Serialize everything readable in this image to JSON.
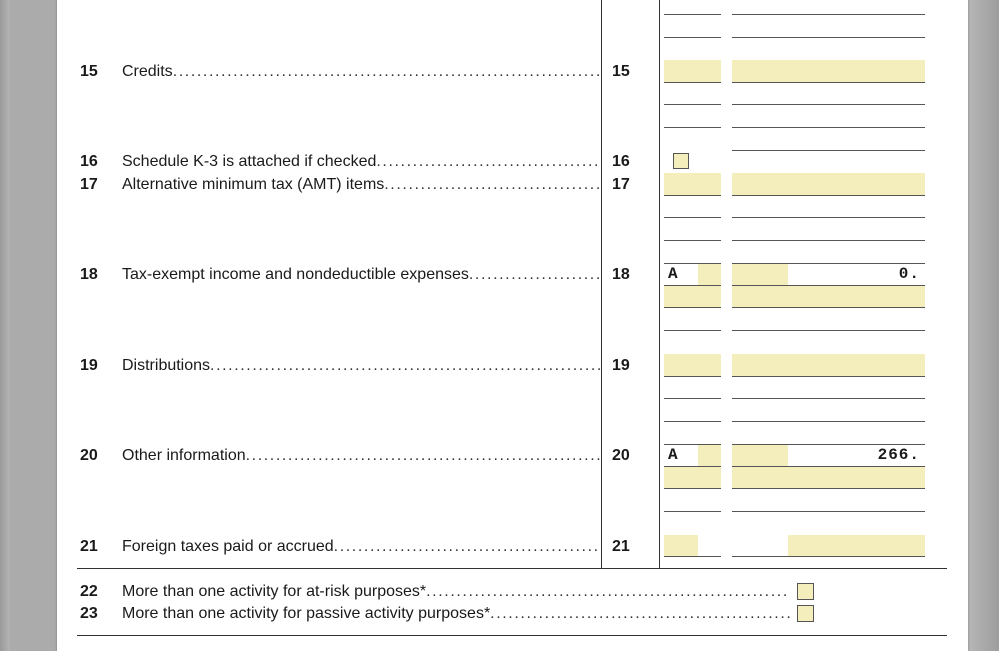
{
  "form": {
    "lines": [
      {
        "num": "15",
        "label": "Credits",
        "box_num": "15"
      },
      {
        "num": "16",
        "label": "Schedule K-3 is attached if checked",
        "box_num": "16"
      },
      {
        "num": "17",
        "label": "Alternative minimum tax (AMT) items",
        "box_num": "17"
      },
      {
        "num": "18",
        "label": "Tax-exempt income and nondeductible expenses",
        "box_num": "18",
        "code": "A",
        "amount": "0."
      },
      {
        "num": "19",
        "label": "Distributions",
        "box_num": "19"
      },
      {
        "num": "20",
        "label": "Other information",
        "box_num": "20",
        "code": "A",
        "amount": "266."
      },
      {
        "num": "21",
        "label": "Foreign taxes paid or accrued",
        "box_num": "21"
      },
      {
        "num": "22",
        "label": "More than one activity for at-risk purposes*"
      },
      {
        "num": "23",
        "label": "More than one activity for passive activity purposes*"
      }
    ],
    "dots": "......................................................................................................................................",
    "checkbox_color": "#f4eebc"
  }
}
